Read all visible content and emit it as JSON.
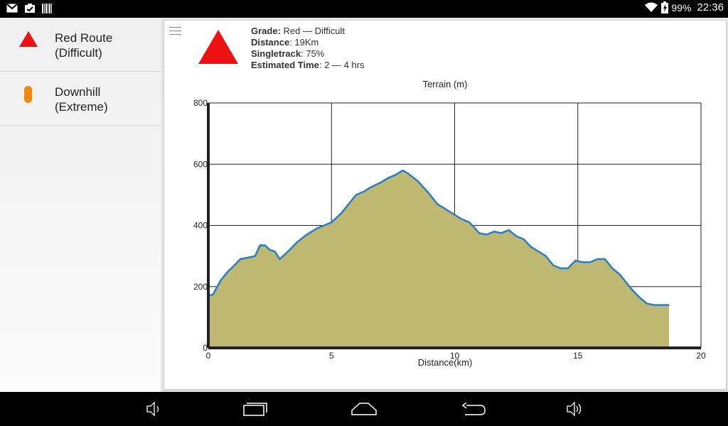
{
  "status": {
    "battery": "99%",
    "time": "22:36",
    "left_icons": [
      "gmail-icon",
      "clipboard-icon",
      "barcode-icon"
    ]
  },
  "sidebar": {
    "items": [
      {
        "label_line1": "Red Route",
        "label_line2": "(Difficult)",
        "icon": "red-triangle-icon",
        "color": "#ee1111"
      },
      {
        "label_line1": "Downhill",
        "label_line2": "(Extreme)",
        "icon": "orange-pill-icon",
        "color": "#ee8811"
      }
    ]
  },
  "detail": {
    "grade_label": "Grade:",
    "grade_value": " Red — Difficult",
    "distance_label": "Distance",
    "distance_value": ": 19Km",
    "singletrack_label": "Singletrack",
    "singletrack_value": ": 75%",
    "time_label": "Estimated Time",
    "time_value": ": 2 — 4 hrs",
    "grade_color": "#ee1111"
  },
  "chart_data": {
    "type": "area",
    "title": "Terrain (m)",
    "xlabel": "Distance(km)",
    "ylabel": "",
    "xlim": [
      0,
      20
    ],
    "ylim": [
      0,
      800
    ],
    "x_ticks": [
      "0",
      "5",
      "10",
      "15",
      "20"
    ],
    "y_ticks": [
      "0",
      "200",
      "400",
      "600",
      "800"
    ],
    "grid": true,
    "fill_color": "#bfb872",
    "line_color": "#2a7dc4",
    "series": [
      {
        "x": [
          0,
          0.2,
          0.5,
          0.8,
          1.0,
          1.3,
          1.6,
          1.9,
          2.1,
          2.3,
          2.5,
          2.7,
          2.9,
          3.1,
          3.3,
          3.6,
          4.0,
          4.4,
          4.7,
          5.0,
          5.4,
          5.7,
          6.0,
          6.3,
          6.6,
          7.0,
          7.3,
          7.6,
          7.9,
          8.1,
          8.5,
          8.9,
          9.3,
          9.6,
          9.9,
          10.3,
          10.6,
          11.0,
          11.3,
          11.6,
          11.9,
          12.2,
          12.5,
          12.8,
          13.1,
          13.4,
          13.7,
          14.0,
          14.3,
          14.6,
          14.9,
          15.2,
          15.5,
          15.8,
          16.1,
          16.4,
          16.7,
          16.9,
          17.2,
          17.5,
          17.8,
          18.1,
          18.4,
          18.7
        ],
        "y": [
          170,
          175,
          220,
          250,
          265,
          290,
          295,
          300,
          335,
          335,
          320,
          315,
          290,
          305,
          320,
          345,
          370,
          390,
          400,
          410,
          440,
          470,
          500,
          510,
          525,
          540,
          555,
          565,
          580,
          570,
          545,
          510,
          470,
          455,
          440,
          420,
          410,
          375,
          370,
          380,
          375,
          385,
          365,
          355,
          330,
          315,
          300,
          270,
          260,
          260,
          285,
          280,
          280,
          290,
          290,
          260,
          240,
          220,
          190,
          165,
          145,
          140,
          140,
          140
        ]
      }
    ]
  },
  "nav": {
    "buttons": [
      "volume-down-icon",
      "recents-icon",
      "home-icon",
      "back-icon",
      "volume-up-icon"
    ]
  }
}
